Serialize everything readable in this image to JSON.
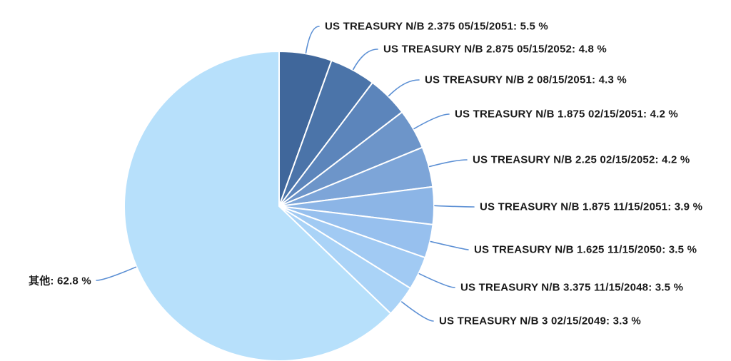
{
  "chart_data": {
    "type": "pie",
    "title": "",
    "unit": "%",
    "direction": "clockwise",
    "start_angle_deg": 0,
    "legend_position": "none",
    "label_style": "external-with-leader-lines",
    "background_color": "#FFFFFF",
    "label_text_color": "#1A1A1A",
    "leader_line_color": "#5B8FD4",
    "slice_border_color": "#FFFFFF",
    "slices": [
      {
        "label": "US TREASURY N/B 2.375 05/15/2051",
        "value": 5.5,
        "color": "#40679B",
        "label_text": "US TREASURY N/B 2.375 05/15/2051: 5.5 %"
      },
      {
        "label": "US TREASURY N/B 2.875 05/15/2052",
        "value": 4.8,
        "color": "#4B74A9",
        "label_text": "US TREASURY N/B 2.875 05/15/2052: 4.8 %"
      },
      {
        "label": "US TREASURY N/B 2 08/15/2051",
        "value": 4.3,
        "color": "#5C85BB",
        "label_text": "US TREASURY N/B 2 08/15/2051: 4.3 %"
      },
      {
        "label": "US TREASURY N/B 1.875 02/15/2051",
        "value": 4.2,
        "color": "#6D95C9",
        "label_text": "US TREASURY N/B 1.875 02/15/2051: 4.2 %"
      },
      {
        "label": "US TREASURY N/B 2.25 02/15/2052",
        "value": 4.2,
        "color": "#7DA5D8",
        "label_text": "US TREASURY N/B 2.25 02/15/2052: 4.2 %"
      },
      {
        "label": "US TREASURY N/B 1.875 11/15/2051",
        "value": 3.9,
        "color": "#8CB5E6",
        "label_text": "US TREASURY N/B 1.875 11/15/2051: 3.9 %"
      },
      {
        "label": "US TREASURY N/B 1.625 11/15/2050",
        "value": 3.5,
        "color": "#97C0EE",
        "label_text": "US TREASURY N/B 1.625 11/15/2050: 3.5 %"
      },
      {
        "label": "US TREASURY N/B 3.375 11/15/2048",
        "value": 3.5,
        "color": "#A1CAF3",
        "label_text": "US TREASURY N/B 3.375 11/15/2048: 3.5 %"
      },
      {
        "label": "US TREASURY N/B 3 02/15/2049",
        "value": 3.3,
        "color": "#AAD3F7",
        "label_text": "US TREASURY N/B 3 02/15/2049: 3.3 %"
      },
      {
        "label": "其他",
        "value": 62.8,
        "color": "#B7E0FB",
        "label_text": "其他: 62.8 %"
      }
    ]
  }
}
